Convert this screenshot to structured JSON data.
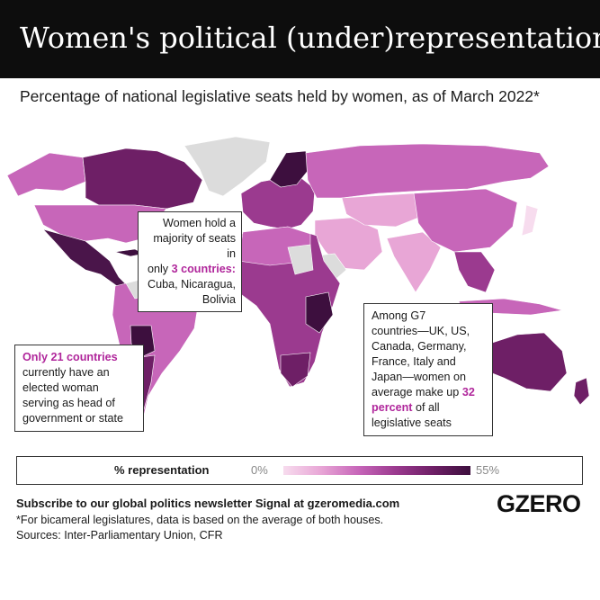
{
  "header": {
    "title": "Women's political (under)representation"
  },
  "subtitle": "Percentage of national legislative seats held by women, as of March 2022*",
  "callouts": {
    "majority": {
      "line1": "Women hold a",
      "line2": "majority of seats in",
      "line3_pre": "only ",
      "line3_hl": "3 countries",
      "line3_post": ":",
      "line4": "Cuba, Nicaragua,",
      "line5": "Bolivia"
    },
    "g7": {
      "line1": "Among G7",
      "line2": "countries—UK, US,",
      "line3": "Canada, Germany,",
      "line4": "France, Italy and",
      "line5": "Japan—women on",
      "line6_pre": "average make up ",
      "line6_hl": "32",
      "line7_hl": "percent",
      "line7_post": " of all",
      "line8": "legislative seats"
    },
    "heads": {
      "line1_hl": "Only 21 countries",
      "line2": "currently have an",
      "line3": "elected woman",
      "line4": "serving as head of",
      "line5": "government or state"
    }
  },
  "legend": {
    "label": "% representation",
    "min": "0%",
    "max": "55%",
    "colors": [
      "#f7dcee",
      "#e8a6d6",
      "#c766b9",
      "#9b3a8f",
      "#6e1f66",
      "#3d0f3e"
    ]
  },
  "map": {
    "no_data_color": "#dcdcdc",
    "country_colors": {
      "north_america": "#c766b9",
      "canada": "#6e1f66",
      "mexico": "#4a154a",
      "greenland": "#dcdcdc",
      "south_america": "#c766b9",
      "bolivia": "#3d0f3e",
      "europe": "#9b3a8f",
      "russia": "#c766b9",
      "africa": "#9b3a8f",
      "middle_east": "#e8a6d6",
      "asia": "#c766b9",
      "australia": "#6e1f66"
    }
  },
  "footer": {
    "subscribe": "Subscribe to our global politics newsletter Signal at gzeromedia.com",
    "note": "*For bicameral legislatures, data is based on the average of both houses.",
    "sources": "Sources: Inter-Parliamentary Union, CFR"
  },
  "logo": "GZERO"
}
